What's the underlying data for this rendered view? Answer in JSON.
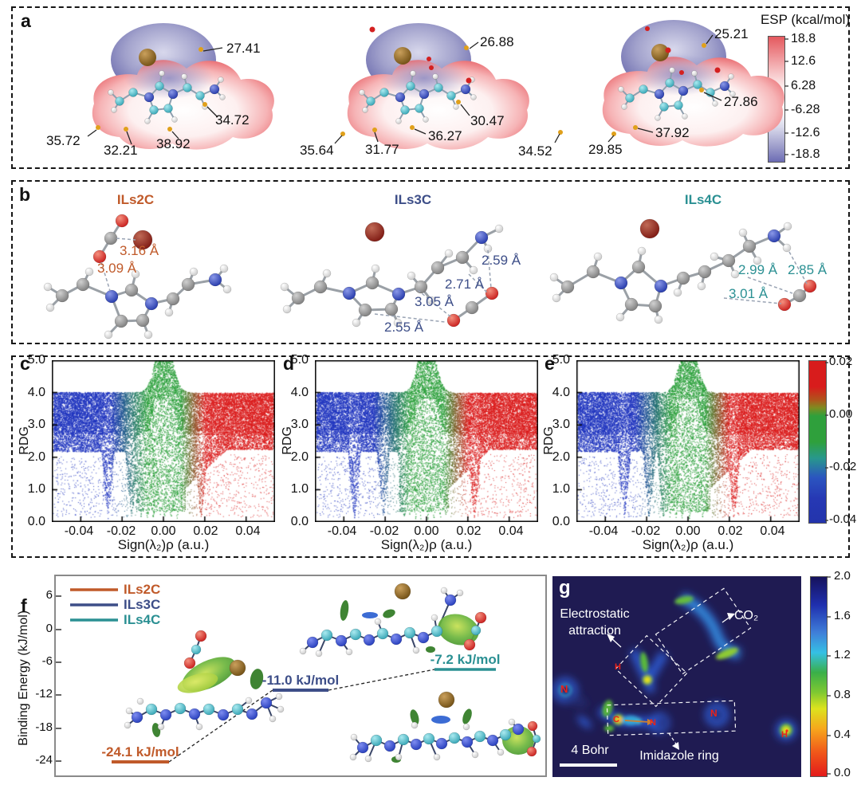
{
  "colors": {
    "ils2c": "#c05a2a",
    "ils3c": "#3d4e88",
    "ils4c": "#2b9093",
    "esp_positive": "#e4595e",
    "esp_negative": "#6c6cb4",
    "rdg_blue": "#2035c0",
    "rdg_green": "#2aa03a",
    "rdg_red": "#dc1e1e",
    "g_background": "#1f1b52",
    "annotation_text": "#111111",
    "atom_label_red": "#e8221a"
  },
  "panels": {
    "a": {
      "label": "a",
      "colorbar": {
        "title": "ESP (kcal/mol)",
        "ticks": [
          "18.8",
          "12.6",
          "6.28",
          "-6.28",
          "-12.6",
          "-18.8"
        ]
      },
      "molecules": [
        {
          "annotations": [
            "27.41",
            "34.72",
            "38.92",
            "32.21",
            "35.72"
          ]
        },
        {
          "annotations": [
            "26.88",
            "30.47",
            "36.27",
            "31.77",
            "35.64"
          ]
        },
        {
          "annotations": [
            "25.21",
            "27.86",
            "37.92",
            "29.85",
            "34.52"
          ]
        }
      ]
    },
    "b": {
      "label": "b",
      "structures": [
        {
          "name": "ILs2C",
          "color": "#c05a2a",
          "distances": [
            "3.16 Å",
            "3.09 Å"
          ]
        },
        {
          "name": "ILs3C",
          "color": "#3d4e88",
          "distances": [
            "2.59 Å",
            "2.71 Å",
            "3.05 Å",
            "2.55 Å"
          ]
        },
        {
          "name": "ILs4C",
          "color": "#2b9093",
          "distances": [
            "2.99 Å",
            "2.85 Å",
            "3.01 Å"
          ]
        }
      ]
    },
    "rdg": {
      "labels": [
        "c",
        "d",
        "e"
      ],
      "ylabel": "RDG",
      "xlabel": "Sign(λ₂)ρ (a.u.)",
      "yticks": [
        "5.0",
        "4.0",
        "3.0",
        "2.0",
        "1.0",
        "0.0"
      ],
      "xticks": [
        "-0.04",
        "-0.02",
        "0.00",
        "0.02",
        "0.04"
      ],
      "colorbar": {
        "ticks": [
          "0.02",
          "0.00",
          "-0.02",
          "-0.04"
        ]
      }
    },
    "f": {
      "label": "f",
      "ylabel": "Binding Energy (kJ/mol)",
      "yticks": [
        "6",
        "0",
        "-6",
        "-12",
        "-18",
        "-24"
      ],
      "legend": [
        {
          "name": "ILs2C"
        },
        {
          "name": "ILs3C"
        },
        {
          "name": "ILs4C"
        }
      ],
      "levels": [
        {
          "text": "-24.1 kJ/mol"
        },
        {
          "text": "-11.0 kJ/mol"
        },
        {
          "text": "-7.2 kJ/mol"
        }
      ]
    },
    "g": {
      "label": "g",
      "labels": {
        "electrostatic_1": "Electrostatic",
        "electrostatic_2": "attraction",
        "co2": "CO₂",
        "imidazole": "Imidazole ring",
        "scalebar": "4 Bohr"
      },
      "atoms": [
        "N",
        "H",
        "C",
        "N",
        "N",
        "H"
      ],
      "colorbar": {
        "ticks": [
          "2.0",
          "1.6",
          "1.2",
          "0.8",
          "0.4",
          "0.0"
        ]
      }
    }
  },
  "chart_data": [
    {
      "panel": "c",
      "type": "scatter",
      "xlabel": "Sign(λ₂)ρ (a.u.)",
      "ylabel": "RDG",
      "xlim": [
        -0.054,
        0.054
      ],
      "ylim": [
        0,
        5
      ],
      "xticks": [
        -0.04,
        -0.02,
        0,
        0.02,
        0.04
      ],
      "yticks": [
        0,
        1,
        2,
        3,
        4,
        5
      ],
      "color_scale": {
        "quantity": "sign(λ₂)ρ",
        "range": [
          -0.04,
          0.02
        ],
        "colors": [
          "#2035c0",
          "#2aa03a",
          "#dc1e1e"
        ]
      },
      "spike_x": [
        -0.027,
        -0.0155,
        -0.011,
        -0.008,
        -0.005,
        -0.002,
        0.0005,
        0.0035,
        0.0065,
        0.018
      ]
    },
    {
      "panel": "d",
      "type": "scatter",
      "xlabel": "Sign(λ₂)ρ (a.u.)",
      "ylabel": "RDG",
      "xlim": [
        -0.054,
        0.054
      ],
      "ylim": [
        0,
        5
      ],
      "xticks": [
        -0.04,
        -0.02,
        0,
        0.02,
        0.04
      ],
      "yticks": [
        0,
        1,
        2,
        3,
        4,
        5
      ],
      "color_scale": {
        "quantity": "sign(λ₂)ρ",
        "range": [
          -0.04,
          0.02
        ],
        "colors": [
          "#2035c0",
          "#2aa03a",
          "#dc1e1e"
        ]
      },
      "spike_x": [
        -0.035,
        -0.021,
        -0.011,
        -0.008,
        -0.0055,
        -0.003,
        0.0005,
        0.0035,
        0.0065,
        0.009,
        0.023
      ]
    },
    {
      "panel": "e",
      "type": "scatter",
      "xlabel": "Sign(λ₂)ρ (a.u.)",
      "ylabel": "RDG",
      "xlim": [
        -0.054,
        0.054
      ],
      "ylim": [
        0,
        5
      ],
      "xticks": [
        -0.04,
        -0.02,
        0,
        0.02,
        0.04
      ],
      "yticks": [
        0,
        1,
        2,
        3,
        4,
        5
      ],
      "color_scale": {
        "quantity": "sign(λ₂)ρ",
        "range": [
          -0.04,
          0.02
        ],
        "colors": [
          "#2035c0",
          "#2aa03a",
          "#dc1e1e"
        ]
      },
      "spike_x": [
        -0.031,
        -0.019,
        -0.012,
        -0.009,
        -0.006,
        -0.003,
        0.0005,
        0.004,
        0.007,
        0.022
      ]
    },
    {
      "panel": "f",
      "type": "line",
      "ylabel": "Binding Energy (kJ/mol)",
      "ylim": [
        -27,
        9
      ],
      "yticks": [
        6,
        0,
        -6,
        -12,
        -18,
        -24
      ],
      "series": [
        {
          "name": "ILs2C",
          "value": -24.1
        },
        {
          "name": "ILs3C",
          "value": -11.0
        },
        {
          "name": "ILs4C",
          "value": -7.2
        }
      ]
    },
    {
      "panel": "g",
      "type": "heatmap",
      "colorbar": {
        "range": [
          0,
          2
        ],
        "ticks": [
          2.0,
          1.6,
          1.2,
          0.8,
          0.4,
          0.0
        ]
      },
      "annotations": [
        "Electrostatic attraction",
        "CO₂",
        "Imidazole ring"
      ],
      "scale_bar": "4 Bohr",
      "atom_labels": [
        "N",
        "H",
        "C",
        "N",
        "N",
        "H"
      ]
    }
  ]
}
